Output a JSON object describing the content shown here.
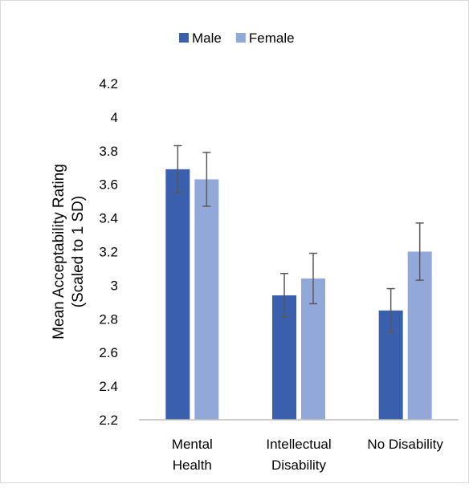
{
  "chart_data": {
    "type": "bar",
    "title": "",
    "xlabel": "",
    "ylabel_lines": [
      "Mean Acceptability Rating",
      "(Scaled to 1 SD)"
    ],
    "ylim": [
      2.2,
      4.2
    ],
    "yticks": [
      "4.2",
      "4",
      "3.8",
      "3.6",
      "3.4",
      "3.2",
      "3",
      "2.8",
      "2.6",
      "2.4",
      "2.2"
    ],
    "categories": [
      [
        "Mental",
        "Health"
      ],
      [
        "Intellectual",
        "Disability"
      ],
      [
        "No Disability"
      ]
    ],
    "series": [
      {
        "name": "Male",
        "color": "#3a5fad",
        "values": [
          3.69,
          2.94,
          2.85
        ],
        "error": [
          0.14,
          0.13,
          0.13
        ]
      },
      {
        "name": "Female",
        "color": "#91a8d8",
        "values": [
          3.63,
          3.04,
          3.2
        ],
        "error": [
          0.16,
          0.15,
          0.17
        ]
      }
    ],
    "legend": "top",
    "grid": false,
    "error_bar_color": "#595959",
    "axis_color": "#bfbfbf"
  }
}
